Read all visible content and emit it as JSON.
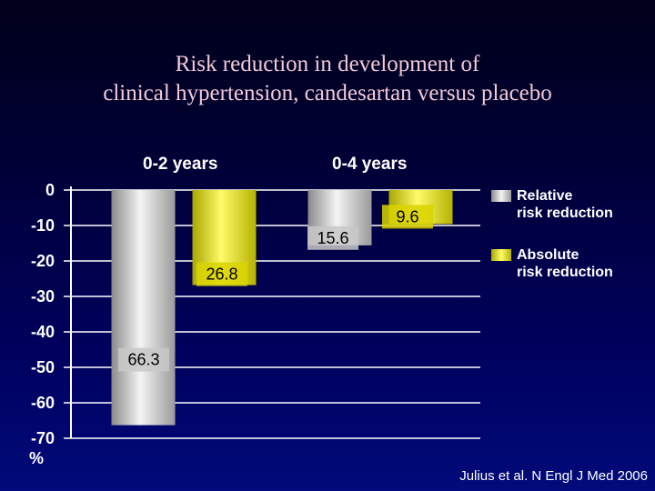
{
  "title_lines": [
    "Risk reduction in development of",
    "clinical hypertension, candesartan versus placebo"
  ],
  "group_labels": [
    "0-2 years",
    "0-4 years"
  ],
  "legend": {
    "relative": {
      "label_line1": "Relative",
      "label_line2": "risk reduction"
    },
    "absolute": {
      "label_line1": "Absolute",
      "label_line2": "risk reduction"
    }
  },
  "source": "Julius et al. N Engl J Med 2006",
  "unit": "%",
  "colors": {
    "relative_light": "#f4f4f4",
    "relative_dark": "#8a8a8a",
    "absolute_light": "#fffb6a",
    "absolute_dark": "#a8a800",
    "axis": "#ffffff",
    "label_box": "#c8c8c8"
  },
  "chart_data": {
    "type": "bar",
    "title": "Risk reduction in development of clinical hypertension, candesartan versus placebo",
    "categories": [
      "0-2 years",
      "0-4 years"
    ],
    "series": [
      {
        "name": "Relative risk reduction",
        "values": [
          -66.3,
          -15.6
        ],
        "labels": [
          "66.3",
          "15.6"
        ]
      },
      {
        "name": "Absolute risk reduction",
        "values": [
          -26.8,
          -9.6
        ],
        "labels": [
          "26.8",
          "9.6"
        ]
      }
    ],
    "yticks": [
      0,
      -10,
      -20,
      -30,
      -40,
      -50,
      -60,
      -70
    ],
    "ylim": [
      -70,
      0
    ],
    "ylabel": "%",
    "xlabel": "",
    "grid": true,
    "legend_position": "right"
  }
}
